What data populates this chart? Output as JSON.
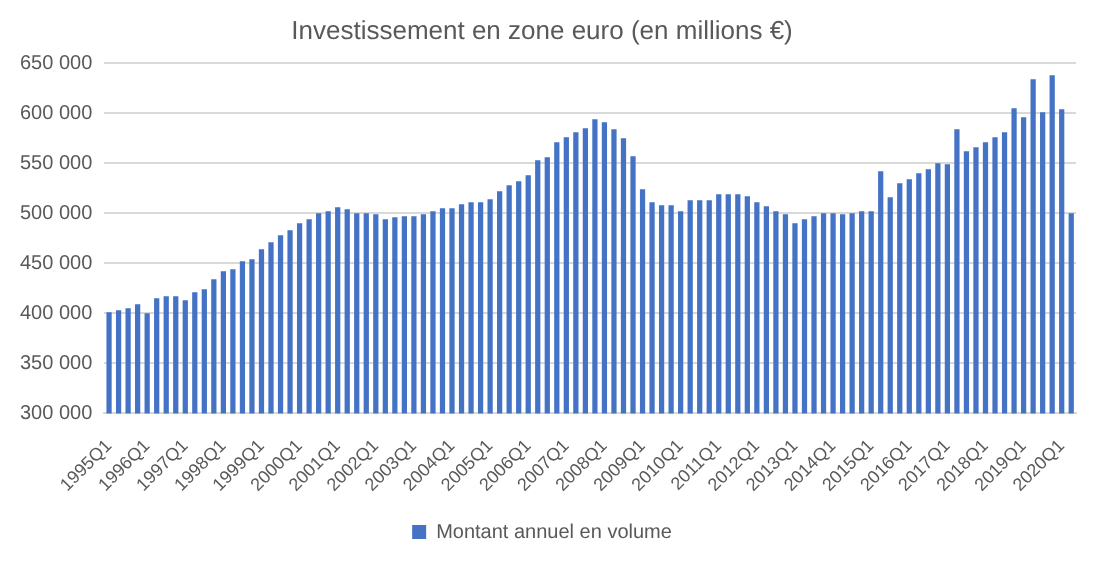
{
  "chart_data": {
    "type": "bar",
    "title": "Investissement en zone euro (en millions €)",
    "categories": [
      "1995Q1",
      null,
      null,
      null,
      "1996Q1",
      null,
      null,
      null,
      "1997Q1",
      null,
      null,
      null,
      "1998Q1",
      null,
      null,
      null,
      "1999Q1",
      null,
      null,
      null,
      "2000Q1",
      null,
      null,
      null,
      "2001Q1",
      null,
      null,
      null,
      "2002Q1",
      null,
      null,
      null,
      "2003Q1",
      null,
      null,
      null,
      "2004Q1",
      null,
      null,
      null,
      "2005Q1",
      null,
      null,
      null,
      "2006Q1",
      null,
      null,
      null,
      "2007Q1",
      null,
      null,
      null,
      "2008Q1",
      null,
      null,
      null,
      "2009Q1",
      null,
      null,
      null,
      "2010Q1",
      null,
      null,
      null,
      "2011Q1",
      null,
      null,
      null,
      "2012Q1",
      null,
      null,
      null,
      "2013Q1",
      null,
      null,
      null,
      "2014Q1",
      null,
      null,
      null,
      "2015Q1",
      null,
      null,
      null,
      "2016Q1",
      null,
      null,
      null,
      "2017Q1",
      null,
      null,
      null,
      "2018Q1",
      null,
      null,
      null,
      "2019Q1",
      null,
      null,
      null,
      "2020Q1",
      null
    ],
    "series": [
      {
        "name": "Montant annuel en volume",
        "color": "#4472c4",
        "values": [
          401000,
          403000,
          405000,
          409000,
          400000,
          415000,
          417000,
          417000,
          413000,
          421000,
          424000,
          434000,
          442000,
          444000,
          452000,
          454000,
          464000,
          471000,
          478000,
          483000,
          490000,
          494000,
          500000,
          502000,
          506000,
          504000,
          500000,
          500000,
          499000,
          494000,
          496000,
          497000,
          497000,
          499000,
          502000,
          505000,
          505000,
          509000,
          511000,
          511000,
          514000,
          522000,
          528000,
          532000,
          538000,
          553000,
          556000,
          571000,
          576000,
          581000,
          585000,
          594000,
          591000,
          584000,
          575000,
          557000,
          524000,
          511000,
          508000,
          508000,
          502000,
          513000,
          513000,
          513000,
          519000,
          519000,
          519000,
          517000,
          511000,
          507000,
          502000,
          499000,
          490000,
          494000,
          497000,
          500000,
          500000,
          499000,
          500000,
          502000,
          502000,
          542000,
          516000,
          530000,
          534000,
          540000,
          544000,
          550000,
          549000,
          584000,
          562000,
          566000,
          571000,
          576000,
          581000,
          605000,
          596000,
          634000,
          601000,
          638000,
          604000,
          500000
        ]
      }
    ],
    "ylim": [
      300000,
      650000
    ],
    "yticks": [
      {
        "value": 300000,
        "label": "300 000"
      },
      {
        "value": 350000,
        "label": "350 000"
      },
      {
        "value": 400000,
        "label": "400 000"
      },
      {
        "value": 450000,
        "label": "450 000"
      },
      {
        "value": 500000,
        "label": "500 000"
      },
      {
        "value": 550000,
        "label": "550 000"
      },
      {
        "value": 600000,
        "label": "600 000"
      },
      {
        "value": 650000,
        "label": "650 000"
      }
    ],
    "grid": "y",
    "legend": "bottom"
  }
}
